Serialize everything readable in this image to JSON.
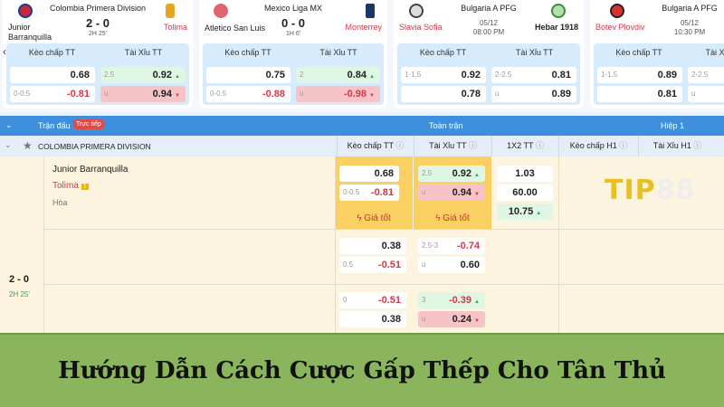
{
  "cards": [
    {
      "league": "Colombia Primera Division",
      "home": "Junior Barranquilla",
      "away": "Tolima",
      "score": "2 - 0",
      "time": "2H 25'",
      "handicap_label": "Kèo chấp TT",
      "ou_label": "Tài Xỉu TT",
      "h1": "",
      "h1v": "0.68",
      "h2": "0-0.5",
      "h2v": "-0.81",
      "o1": "2.5",
      "o1v": "0.92",
      "o2": "u",
      "o2v": "0.94"
    },
    {
      "league": "Mexico Liga MX",
      "home": "Atletico San Luis",
      "away": "Monterrey",
      "score": "0 - 0",
      "time": "1H 6'",
      "handicap_label": "Kèo chấp TT",
      "ou_label": "Tài Xỉu TT",
      "h1": "",
      "h1v": "0.75",
      "h2": "0-0.5",
      "h2v": "-0.88",
      "o1": "2",
      "o1v": "0.84",
      "o2": "u",
      "o2v": "-0.98"
    },
    {
      "league": "Bulgaria A PFG",
      "home": "Slavia Sofia",
      "away": "Hebar 1918",
      "date": "05/12",
      "clock": "08:00 PM",
      "handicap_label": "Kèo chấp TT",
      "ou_label": "Tài Xỉu TT",
      "h1": "1-1.5",
      "h1v": "0.92",
      "h2": "",
      "h2v": "0.78",
      "o1": "2-2.5",
      "o1v": "0.81",
      "o2": "u",
      "o2v": "0.89"
    },
    {
      "league": "Bulgaria A PFG",
      "home": "Botev Plovdiv",
      "date": "05/12",
      "clock": "10:30 PM",
      "handicap_label": "Kèo chấp TT",
      "ou_label": "Tài X",
      "h1": "1-1.5",
      "h1v": "0.89",
      "h2": "",
      "h2v": "0.81",
      "o1": "2-2.5",
      "o1v": "",
      "o2": "u",
      "o2v": ""
    }
  ],
  "table": {
    "header": {
      "match": "Trận đấu",
      "live_badge": "Trực tiếp",
      "full": "Toàn trận",
      "half": "Hiệp 1"
    },
    "league": "COLOMBIA PRIMERA DIVISION",
    "columns": [
      "Kèo chấp TT",
      "Tài Xỉu TT",
      "1X2 TT",
      "Kèo chấp H1",
      "Tài Xỉu H1"
    ],
    "home": "Junior Barranquilla",
    "away": "Tolima",
    "red_cards": "1",
    "draw": "Hòa",
    "score": "2 - 0",
    "time": "2H 25'",
    "best_price": "Giá tốt",
    "rows": [
      {
        "hc": [
          [
            "",
            "0.68"
          ],
          [
            "0-0.5",
            "-0.81"
          ]
        ],
        "ou": [
          [
            "2.5",
            "0.92"
          ],
          [
            "u",
            "0.94"
          ]
        ],
        "x12": [
          "1.03",
          "60.00",
          "10.75"
        ]
      },
      {
        "hc": [
          [
            "",
            "0.38"
          ],
          [
            "0.5",
            "-0.51"
          ]
        ],
        "ou": [
          [
            "2.5-3",
            "-0.74"
          ],
          [
            "u",
            "0.60"
          ]
        ]
      },
      {
        "hc": [
          [
            "0",
            "-0.51"
          ],
          [
            "",
            "0.38"
          ]
        ],
        "ou": [
          [
            "3",
            "-0.39"
          ],
          [
            "u",
            "0.24"
          ]
        ]
      }
    ],
    "watermark": "TIP88"
  },
  "banner": {
    "title": "Hướng Dẫn Cách Cược Gấp Thếp Cho Tân Thủ"
  }
}
